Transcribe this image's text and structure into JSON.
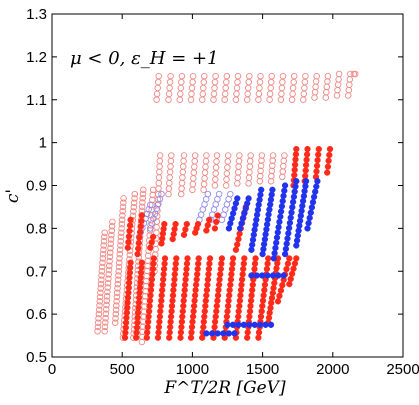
{
  "chart_data": {
    "type": "scatter",
    "annotation": "μ < 0, ε_H = +1",
    "xlabel": "F^T/2R [GeV]",
    "ylabel": "c'",
    "xlim": [
      0,
      2500
    ],
    "ylim": [
      0.5,
      1.3
    ],
    "xticks": [
      0,
      500,
      1000,
      1500,
      2000,
      2500
    ],
    "yticks": [
      0.5,
      0.6,
      0.7,
      0.8,
      0.9,
      1.0,
      1.1,
      1.2,
      1.3
    ],
    "ytick_labels": [
      "0.5",
      "0.6",
      "0.7",
      "0.8",
      "0.9",
      "1",
      "1.1",
      "1.2",
      "1.3"
    ],
    "grid": false,
    "colors": {
      "red": "#ff2a1a",
      "red_light": "#f08a86",
      "blue": "#2233ee",
      "blue_light": "#8f8cf0"
    },
    "groups": [
      {
        "kind": "open-red",
        "start": [
          325,
          0.56
        ],
        "end": [
          375,
          0.79
        ],
        "step": 0.01
      },
      {
        "kind": "open-red",
        "start": [
          375,
          0.56
        ],
        "end": [
          430,
          0.815
        ],
        "step": 0.01
      },
      {
        "kind": "open-red",
        "start": [
          450,
          0.58
        ],
        "end": [
          510,
          0.87
        ],
        "step": 0.01
      },
      {
        "kind": "open-red",
        "start": [
          505,
          0.545
        ],
        "end": [
          590,
          0.88
        ],
        "step": 0.01
      },
      {
        "kind": "open-red",
        "start": [
          580,
          0.545
        ],
        "end": [
          650,
          0.89
        ],
        "step": 0.01
      },
      {
        "kind": "open-red",
        "start": [
          640,
          0.535
        ],
        "end": [
          720,
          0.89
        ],
        "step": 0.012
      },
      {
        "kind": "open-red",
        "start": [
          730,
          0.7
        ],
        "end": [
          770,
          0.97
        ],
        "step": 0.015
      },
      {
        "kind": "open-red",
        "start": [
          830,
          0.88
        ],
        "end": [
          850,
          0.97
        ],
        "step": 0.015
      },
      {
        "kind": "open-red",
        "start": [
          920,
          0.88
        ],
        "end": [
          940,
          0.97
        ],
        "step": 0.015
      },
      {
        "kind": "open-red",
        "start": [
          1000,
          0.89
        ],
        "end": [
          1020,
          0.97
        ],
        "step": 0.015
      },
      {
        "kind": "open-red",
        "start": [
          1080,
          0.89
        ],
        "end": [
          1100,
          0.97
        ],
        "step": 0.015
      },
      {
        "kind": "open-red",
        "start": [
          1160,
          0.9
        ],
        "end": [
          1175,
          0.97
        ],
        "step": 0.015
      },
      {
        "kind": "open-red",
        "start": [
          1240,
          0.9
        ],
        "end": [
          1255,
          0.97
        ],
        "step": 0.015
      },
      {
        "kind": "open-red",
        "start": [
          1320,
          0.905
        ],
        "end": [
          1335,
          0.97
        ],
        "step": 0.015
      },
      {
        "kind": "open-red",
        "start": [
          1400,
          0.905
        ],
        "end": [
          1415,
          0.97
        ],
        "step": 0.015
      },
      {
        "kind": "open-red",
        "start": [
          1480,
          0.91
        ],
        "end": [
          1495,
          0.97
        ],
        "step": 0.015
      },
      {
        "kind": "open-red",
        "start": [
          1560,
          0.91
        ],
        "end": [
          1575,
          0.97
        ],
        "step": 0.015
      },
      {
        "kind": "open-red",
        "start": [
          1640,
          0.92
        ],
        "end": [
          1655,
          0.97
        ],
        "step": 0.015
      },
      {
        "kind": "open-red",
        "start": [
          745,
          1.1
        ],
        "end": [
          760,
          1.155
        ],
        "step": 0.02
      },
      {
        "kind": "open-red",
        "start": [
          830,
          1.1
        ],
        "end": [
          845,
          1.155
        ],
        "step": 0.02
      },
      {
        "kind": "open-red",
        "start": [
          910,
          1.1
        ],
        "end": [
          925,
          1.155
        ],
        "step": 0.02
      },
      {
        "kind": "open-red",
        "start": [
          990,
          1.1
        ],
        "end": [
          1005,
          1.155
        ],
        "step": 0.02
      },
      {
        "kind": "open-red",
        "start": [
          1070,
          1.1
        ],
        "end": [
          1085,
          1.155
        ],
        "step": 0.02
      },
      {
        "kind": "open-red",
        "start": [
          1150,
          1.1
        ],
        "end": [
          1165,
          1.155
        ],
        "step": 0.02
      },
      {
        "kind": "open-red",
        "start": [
          1230,
          1.1
        ],
        "end": [
          1245,
          1.155
        ],
        "step": 0.02
      },
      {
        "kind": "open-red",
        "start": [
          1310,
          1.1
        ],
        "end": [
          1325,
          1.155
        ],
        "step": 0.02
      },
      {
        "kind": "open-red",
        "start": [
          1390,
          1.1
        ],
        "end": [
          1405,
          1.155
        ],
        "step": 0.02
      },
      {
        "kind": "open-red",
        "start": [
          1470,
          1.1
        ],
        "end": [
          1485,
          1.155
        ],
        "step": 0.02
      },
      {
        "kind": "open-red",
        "start": [
          1550,
          1.1
        ],
        "end": [
          1565,
          1.155
        ],
        "step": 0.02
      },
      {
        "kind": "open-red",
        "start": [
          1630,
          1.1
        ],
        "end": [
          1645,
          1.155
        ],
        "step": 0.02
      },
      {
        "kind": "open-red",
        "start": [
          1710,
          1.1
        ],
        "end": [
          1725,
          1.155
        ],
        "step": 0.02
      },
      {
        "kind": "open-red",
        "start": [
          1790,
          1.1
        ],
        "end": [
          1805,
          1.155
        ],
        "step": 0.02
      },
      {
        "kind": "open-red",
        "start": [
          1870,
          1.105
        ],
        "end": [
          1885,
          1.155
        ],
        "step": 0.02
      },
      {
        "kind": "open-red",
        "start": [
          1950,
          1.105
        ],
        "end": [
          1965,
          1.155
        ],
        "step": 0.02
      },
      {
        "kind": "open-red",
        "start": [
          2030,
          1.11
        ],
        "end": [
          2045,
          1.16
        ],
        "step": 0.02
      },
      {
        "kind": "open-red",
        "start": [
          2110,
          1.11
        ],
        "end": [
          2125,
          1.16
        ],
        "step": 0.02
      },
      {
        "kind": "open-red",
        "start": [
          2150,
          1.16
        ],
        "end": [
          2160,
          1.16
        ],
        "step": 0.02
      },
      {
        "kind": "open-blue",
        "start": [
          620,
          0.78
        ],
        "end": [
          700,
          0.855
        ],
        "step": 0.01
      },
      {
        "kind": "open-blue",
        "start": [
          700,
          0.8
        ],
        "end": [
          780,
          0.88
        ],
        "step": 0.012
      },
      {
        "kind": "open-blue",
        "start": [
          1050,
          0.82
        ],
        "end": [
          1110,
          0.88
        ],
        "step": 0.015
      },
      {
        "kind": "open-blue",
        "start": [
          1130,
          0.82
        ],
        "end": [
          1190,
          0.88
        ],
        "step": 0.015
      },
      {
        "kind": "open-blue",
        "start": [
          1210,
          0.82
        ],
        "end": [
          1270,
          0.88
        ],
        "step": 0.015
      },
      {
        "kind": "filled-red",
        "start": [
          540,
          0.755
        ],
        "end": [
          560,
          0.82
        ],
        "step": 0.013
      },
      {
        "kind": "filled-red",
        "start": [
          610,
          0.74
        ],
        "end": [
          640,
          0.83
        ],
        "step": 0.013
      },
      {
        "kind": "filled-red",
        "start": [
          700,
          0.755
        ],
        "end": [
          720,
          0.78
        ],
        "step": 0.013
      },
      {
        "kind": "filled-red",
        "start": [
          780,
          0.765
        ],
        "end": [
          800,
          0.81
        ],
        "step": 0.013
      },
      {
        "kind": "filled-red",
        "start": [
          860,
          0.775
        ],
        "end": [
          880,
          0.81
        ],
        "step": 0.013
      },
      {
        "kind": "filled-red",
        "start": [
          940,
          0.785
        ],
        "end": [
          960,
          0.81
        ],
        "step": 0.013
      },
      {
        "kind": "filled-red",
        "start": [
          1020,
          0.79
        ],
        "end": [
          1040,
          0.81
        ],
        "step": 0.013
      },
      {
        "kind": "filled-red",
        "start": [
          1100,
          0.795
        ],
        "end": [
          1120,
          0.82
        ],
        "step": 0.013
      },
      {
        "kind": "filled-red",
        "start": [
          1160,
          0.8
        ],
        "end": [
          1180,
          0.83
        ],
        "step": 0.013
      },
      {
        "kind": "filled-red",
        "start": [
          520,
          0.545
        ],
        "end": [
          560,
          0.72
        ],
        "step": 0.012
      },
      {
        "kind": "filled-red",
        "start": [
          600,
          0.545
        ],
        "end": [
          640,
          0.72
        ],
        "step": 0.012
      },
      {
        "kind": "filled-red",
        "start": [
          675,
          0.545
        ],
        "end": [
          725,
          0.73
        ],
        "step": 0.012
      },
      {
        "kind": "filled-red",
        "start": [
          755,
          0.545
        ],
        "end": [
          805,
          0.73
        ],
        "step": 0.012
      },
      {
        "kind": "filled-red",
        "start": [
          835,
          0.545
        ],
        "end": [
          885,
          0.73
        ],
        "step": 0.012
      },
      {
        "kind": "filled-red",
        "start": [
          915,
          0.545
        ],
        "end": [
          965,
          0.73
        ],
        "step": 0.012
      },
      {
        "kind": "filled-red",
        "start": [
          990,
          0.545
        ],
        "end": [
          1045,
          0.73
        ],
        "step": 0.012
      },
      {
        "kind": "filled-red",
        "start": [
          1070,
          0.545
        ],
        "end": [
          1125,
          0.73
        ],
        "step": 0.012
      },
      {
        "kind": "filled-red",
        "start": [
          1150,
          0.545
        ],
        "end": [
          1210,
          0.73
        ],
        "step": 0.012
      },
      {
        "kind": "filled-red",
        "start": [
          1230,
          0.545
        ],
        "end": [
          1290,
          0.73
        ],
        "step": 0.012
      },
      {
        "kind": "filled-red",
        "start": [
          1310,
          0.545
        ],
        "end": [
          1370,
          0.73
        ],
        "step": 0.012
      },
      {
        "kind": "filled-red",
        "start": [
          1390,
          0.545
        ],
        "end": [
          1450,
          0.73
        ],
        "step": 0.012
      },
      {
        "kind": "filled-red",
        "start": [
          1470,
          0.545
        ],
        "end": [
          1540,
          0.73
        ],
        "step": 0.012
      },
      {
        "kind": "filled-red",
        "start": [
          1540,
          0.58
        ],
        "end": [
          1610,
          0.73
        ],
        "step": 0.012
      },
      {
        "kind": "filled-red",
        "start": [
          1610,
          0.63
        ],
        "end": [
          1690,
          0.73
        ],
        "step": 0.012
      },
      {
        "kind": "filled-red",
        "start": [
          1690,
          0.67
        ],
        "end": [
          1740,
          0.73
        ],
        "step": 0.012
      },
      {
        "kind": "filled-red",
        "start": [
          1310,
          0.75
        ],
        "end": [
          1380,
          0.85
        ],
        "step": 0.012
      },
      {
        "kind": "filled-red",
        "start": [
          1720,
          0.9
        ],
        "end": [
          1740,
          0.985
        ],
        "step": 0.015
      },
      {
        "kind": "filled-red",
        "start": [
          1800,
          0.91
        ],
        "end": [
          1820,
          0.985
        ],
        "step": 0.015
      },
      {
        "kind": "filled-red",
        "start": [
          1880,
          0.92
        ],
        "end": [
          1900,
          0.985
        ],
        "step": 0.015
      },
      {
        "kind": "filled-red",
        "start": [
          1960,
          0.93
        ],
        "end": [
          1980,
          0.985
        ],
        "step": 0.015
      },
      {
        "kind": "filled-blue",
        "start": [
          1260,
          0.8
        ],
        "end": [
          1320,
          0.87
        ],
        "step": 0.012
      },
      {
        "kind": "filled-blue",
        "start": [
          1340,
          0.8
        ],
        "end": [
          1400,
          0.87
        ],
        "step": 0.012
      },
      {
        "kind": "filled-blue",
        "start": [
          1420,
          0.75
        ],
        "end": [
          1490,
          0.89
        ],
        "step": 0.012
      },
      {
        "kind": "filled-blue",
        "start": [
          1500,
          0.74
        ],
        "end": [
          1570,
          0.89
        ],
        "step": 0.012
      },
      {
        "kind": "filled-blue",
        "start": [
          1580,
          0.73
        ],
        "end": [
          1660,
          0.9
        ],
        "step": 0.012
      },
      {
        "kind": "filled-blue",
        "start": [
          1660,
          0.74
        ],
        "end": [
          1740,
          0.91
        ],
        "step": 0.012
      },
      {
        "kind": "filled-blue",
        "start": [
          1740,
          0.76
        ],
        "end": [
          1810,
          0.91
        ],
        "step": 0.012
      },
      {
        "kind": "filled-blue",
        "start": [
          1820,
          0.8
        ],
        "end": [
          1890,
          0.91
        ],
        "step": 0.012
      },
      {
        "kind": "filled-blue",
        "start": [
          1250,
          0.575
        ],
        "end": [
          1560,
          0.575
        ],
        "step": 0.04
      },
      {
        "kind": "filled-blue",
        "start": [
          1100,
          0.555
        ],
        "end": [
          1300,
          0.555
        ],
        "step": 0.04
      },
      {
        "kind": "filled-blue",
        "start": [
          1420,
          0.69
        ],
        "end": [
          1650,
          0.69
        ],
        "step": 0.04
      }
    ]
  }
}
